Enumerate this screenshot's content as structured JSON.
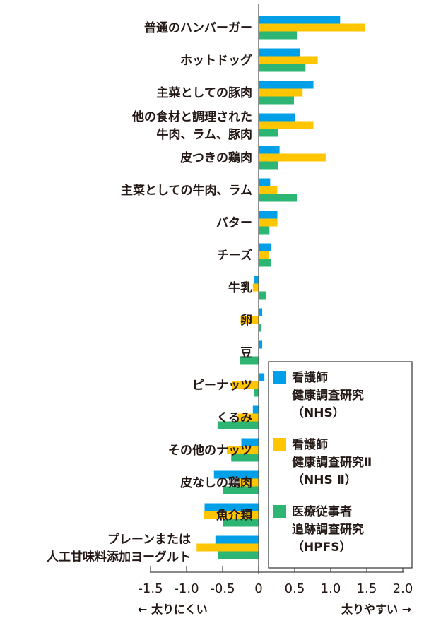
{
  "chart_data": {
    "type": "bar",
    "orientation": "horizontal",
    "categories": [
      [
        "普通のハンバーガー"
      ],
      [
        "ホットドッグ"
      ],
      [
        "主菜としての豚肉"
      ],
      [
        "他の食材と調理された",
        "牛肉、ラム、豚肉"
      ],
      [
        "皮つきの鶏肉"
      ],
      [
        "主菜としての牛肉、ラム"
      ],
      [
        "バター"
      ],
      [
        "チーズ"
      ],
      [
        "牛乳"
      ],
      [
        "卵"
      ],
      [
        "豆"
      ],
      [
        "ピーナッツ"
      ],
      [
        "くるみ"
      ],
      [
        "その他のナッツ"
      ],
      [
        "皮なしの鶏肉"
      ],
      [
        "魚介類"
      ],
      [
        "プレーンまたは",
        "人工甘味料添加ヨーグルト"
      ]
    ],
    "series": [
      {
        "name": [
          "看護師",
          "健康調査研究",
          "（NHS）"
        ],
        "color": "#00a0e9",
        "values": [
          1.13,
          0.57,
          0.76,
          0.51,
          0.29,
          0.16,
          0.26,
          0.17,
          -0.06,
          0.05,
          0.05,
          0.08,
          -0.08,
          -0.24,
          -0.62,
          -0.75,
          -0.6
        ]
      },
      {
        "name": [
          "看護師",
          "健康調査研究Ⅱ",
          "（NHS Ⅱ）"
        ],
        "color": "#ffc600",
        "values": [
          1.48,
          0.82,
          0.61,
          0.76,
          0.93,
          0.26,
          0.26,
          0.14,
          -0.08,
          -0.25,
          0.0,
          -0.37,
          -0.29,
          -0.44,
          -0.27,
          -0.76,
          -0.86
        ]
      },
      {
        "name": [
          "医療従事者",
          "追跡調査研究",
          "（HPFS）"
        ],
        "color": "#2db573",
        "values": [
          0.53,
          0.65,
          0.49,
          0.27,
          0.27,
          0.53,
          0.15,
          0.17,
          0.1,
          0.04,
          -0.26,
          -0.06,
          -0.57,
          -0.38,
          -0.5,
          -0.5,
          -0.56
        ]
      }
    ],
    "xlim": [
      -1.5,
      2.0
    ],
    "xticks": [
      "-1.5",
      "-1.0",
      "-0.5",
      "0",
      "0.5",
      "1.0",
      "1.5",
      "2.0"
    ],
    "xtick_values": [
      -1.5,
      -1.0,
      -0.5,
      0,
      0.5,
      1.0,
      1.5,
      2.0
    ],
    "xlabel_left": "← 太りにくい",
    "xlabel_right": "太りやすい →",
    "legend_position": "bottom-right",
    "grid": false
  }
}
